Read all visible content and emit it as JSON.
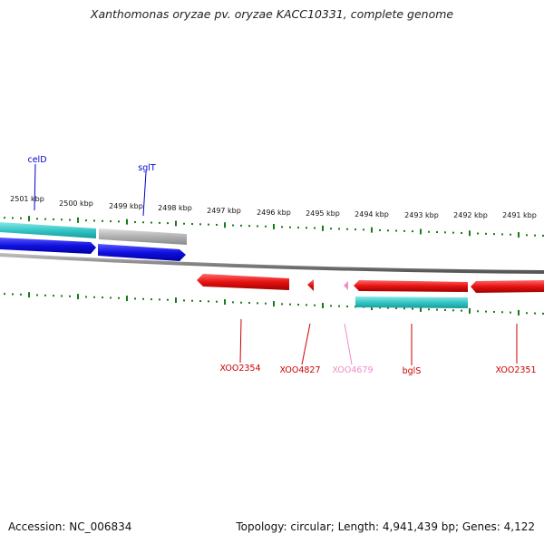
{
  "title": "Xanthomonas oryzae pv. oryzae KACC10331, complete genome",
  "footer": {
    "accession": "Accession: NC_006834",
    "summary": "Topology: circular; Length: 4,941,439 bp; Genes: 4,122"
  },
  "ruler": {
    "labels": [
      "2501 kbp",
      "2500 kbp",
      "2499 kbp",
      "2498 kbp",
      "2497 kbp",
      "2496 kbp",
      "2495 kbp",
      "2494 kbp",
      "2493 kbp",
      "2492 kbp",
      "2491 kbp"
    ]
  },
  "genes": [
    {
      "label": "celD",
      "color": "#0000cc"
    },
    {
      "label": "sglT",
      "color": "#0000cc"
    },
    {
      "label": "XOO2354",
      "color": "#cc0000"
    },
    {
      "label": "XOO4827",
      "color": "#cc0000"
    },
    {
      "label": "XOO4679",
      "color": "#f08cc8"
    },
    {
      "label": "bglS",
      "color": "#cc0000"
    },
    {
      "label": "XOO2351",
      "color": "#cc0000"
    }
  ],
  "colors": {
    "tick": "#1a7a1a",
    "backbone": "#888888",
    "cds_forward": "#1010e0",
    "cds_reverse": "#e61212",
    "rna_cyan": "#33c6c6",
    "gray_feature": "#b0b0b0",
    "pink_feature": "#f08cc8"
  }
}
